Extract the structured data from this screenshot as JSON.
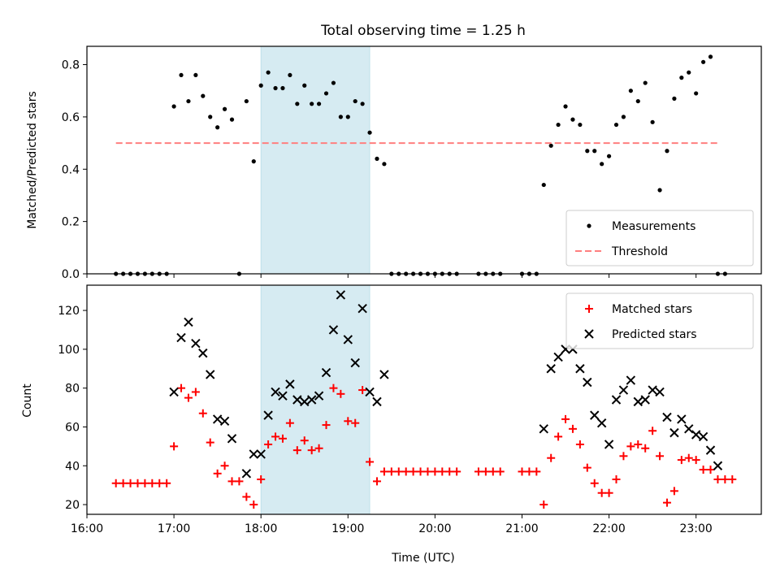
{
  "chart_data": [
    {
      "type": "scatter",
      "title": "Total observing time = 1.25 h",
      "xlabel": "",
      "ylabel": "Matched/Predicted stars",
      "xlim": [
        "16:00",
        "23:45"
      ],
      "ylim": [
        0,
        0.87
      ],
      "yticks": [
        0.0,
        0.2,
        0.4,
        0.6,
        0.8
      ],
      "ytick_labels": [
        "0.0",
        "0.2",
        "0.4",
        "0.6",
        "0.8"
      ],
      "shaded_span": {
        "x0": "18:00",
        "x1": "19:15",
        "color": "#add8e6"
      },
      "legend_position": "lower-right",
      "series": [
        {
          "name": "Measurements",
          "marker": "dot",
          "color": "#000000",
          "x": [
            "16:20",
            "16:25",
            "16:30",
            "16:35",
            "16:40",
            "16:45",
            "16:50",
            "16:55",
            "17:00",
            "17:05",
            "17:10",
            "17:15",
            "17:20",
            "17:25",
            "17:30",
            "17:35",
            "17:40",
            "17:45",
            "17:50",
            "17:55",
            "18:00",
            "18:05",
            "18:10",
            "18:15",
            "18:20",
            "18:25",
            "18:30",
            "18:35",
            "18:40",
            "18:45",
            "18:50",
            "18:55",
            "19:00",
            "19:05",
            "19:10",
            "19:15",
            "19:20",
            "19:25",
            "19:30",
            "19:35",
            "19:40",
            "19:45",
            "19:50",
            "19:55",
            "20:00",
            "20:05",
            "20:10",
            "20:15",
            "20:30",
            "20:35",
            "20:40",
            "20:45",
            "21:00",
            "21:05",
            "21:10",
            "21:15",
            "21:20",
            "21:25",
            "21:30",
            "21:35",
            "21:40",
            "21:45",
            "21:50",
            "21:55",
            "22:00",
            "22:05",
            "22:10",
            "22:15",
            "22:20",
            "22:25",
            "22:30",
            "22:35",
            "22:40",
            "22:45",
            "22:50",
            "22:55",
            "23:00",
            "23:05",
            "23:10",
            "23:15",
            "23:20"
          ],
          "y": [
            0,
            0,
            0,
            0,
            0,
            0,
            0,
            0,
            0.64,
            0.76,
            0.66,
            0.76,
            0.68,
            0.6,
            0.56,
            0.63,
            0.59,
            0,
            0.66,
            0.43,
            0.72,
            0.77,
            0.71,
            0.71,
            0.76,
            0.65,
            0.72,
            0.65,
            0.65,
            0.69,
            0.73,
            0.6,
            0.6,
            0.66,
            0.65,
            0.54,
            0.44,
            0.42,
            0,
            0,
            0,
            0,
            0,
            0,
            0,
            0,
            0,
            0,
            0,
            0,
            0,
            0,
            0,
            0,
            0,
            0.34,
            0.49,
            0.57,
            0.64,
            0.59,
            0.57,
            0.47,
            0.47,
            0.42,
            0.45,
            0.57,
            0.6,
            0.7,
            0.66,
            0.73,
            0.58,
            0.32,
            0.47,
            0.67,
            0.75,
            0.77,
            0.69,
            0.81,
            0.83,
            0,
            0
          ]
        },
        {
          "name": "Threshold",
          "style": "dashed",
          "color": "#ff7f7f",
          "x": [
            "16:20",
            "23:15"
          ],
          "y": [
            0.5,
            0.5
          ]
        }
      ]
    },
    {
      "type": "scatter",
      "title": "",
      "xlabel": "Time (UTC)",
      "ylabel": "Count",
      "xlim": [
        "16:00",
        "23:45"
      ],
      "ylim": [
        15,
        133
      ],
      "yticks": [
        20,
        40,
        60,
        80,
        100,
        120
      ],
      "ytick_labels": [
        "20",
        "40",
        "60",
        "80",
        "100",
        "120"
      ],
      "xticks": [
        "16:00",
        "17:00",
        "18:00",
        "19:00",
        "20:00",
        "21:00",
        "22:00",
        "23:00"
      ],
      "xtick_labels": [
        "16:00",
        "17:00",
        "18:00",
        "19:00",
        "20:00",
        "21:00",
        "22:00",
        "23:00"
      ],
      "shaded_span": {
        "x0": "18:00",
        "x1": "19:15",
        "color": "#add8e6"
      },
      "legend_position": "upper-right",
      "series": [
        {
          "name": "Matched stars",
          "marker": "plus",
          "color": "#ff0000",
          "x": [
            "16:20",
            "16:25",
            "16:30",
            "16:35",
            "16:40",
            "16:45",
            "16:50",
            "16:55",
            "17:00",
            "17:05",
            "17:10",
            "17:15",
            "17:20",
            "17:25",
            "17:30",
            "17:35",
            "17:40",
            "17:45",
            "17:50",
            "17:55",
            "18:00",
            "18:05",
            "18:10",
            "18:15",
            "18:20",
            "18:25",
            "18:30",
            "18:35",
            "18:40",
            "18:45",
            "18:50",
            "18:55",
            "19:00",
            "19:05",
            "19:10",
            "19:15",
            "19:20",
            "19:25",
            "19:30",
            "19:35",
            "19:40",
            "19:45",
            "19:50",
            "19:55",
            "20:00",
            "20:05",
            "20:10",
            "20:15",
            "20:30",
            "20:35",
            "20:40",
            "20:45",
            "21:00",
            "21:05",
            "21:10",
            "21:15",
            "21:20",
            "21:25",
            "21:30",
            "21:35",
            "21:40",
            "21:45",
            "21:50",
            "21:55",
            "22:00",
            "22:05",
            "22:10",
            "22:15",
            "22:20",
            "22:25",
            "22:30",
            "22:35",
            "22:40",
            "22:45",
            "22:50",
            "22:55",
            "23:00",
            "23:05",
            "23:10",
            "23:15",
            "23:20",
            "23:25"
          ],
          "y": [
            31,
            31,
            31,
            31,
            31,
            31,
            31,
            31,
            50,
            80,
            75,
            78,
            67,
            52,
            36,
            40,
            32,
            32,
            24,
            20,
            33,
            51,
            55,
            54,
            62,
            48,
            53,
            48,
            49,
            61,
            80,
            77,
            63,
            62,
            79,
            42,
            32,
            37,
            37,
            37,
            37,
            37,
            37,
            37,
            37,
            37,
            37,
            37,
            37,
            37,
            37,
            37,
            37,
            37,
            37,
            20,
            44,
            55,
            64,
            59,
            51,
            39,
            31,
            26,
            26,
            33,
            45,
            50,
            51,
            49,
            58,
            45,
            21,
            27,
            43,
            44,
            43,
            38,
            38,
            33,
            33,
            33
          ]
        },
        {
          "name": "Predicted stars",
          "marker": "x",
          "color": "#000000",
          "x": [
            "17:00",
            "17:05",
            "17:10",
            "17:15",
            "17:20",
            "17:25",
            "17:30",
            "17:35",
            "17:40",
            "17:50",
            "17:55",
            "18:00",
            "18:05",
            "18:10",
            "18:15",
            "18:20",
            "18:25",
            "18:30",
            "18:35",
            "18:40",
            "18:45",
            "18:50",
            "18:55",
            "19:00",
            "19:05",
            "19:10",
            "19:15",
            "19:20",
            "19:25",
            "21:15",
            "21:20",
            "21:25",
            "21:30",
            "21:35",
            "21:40",
            "21:45",
            "21:50",
            "21:55",
            "22:00",
            "22:05",
            "22:10",
            "22:15",
            "22:20",
            "22:25",
            "22:30",
            "22:35",
            "22:40",
            "22:45",
            "22:50",
            "22:55",
            "23:00",
            "23:05",
            "23:10",
            "23:15"
          ],
          "y": [
            78,
            106,
            114,
            103,
            98,
            87,
            64,
            63,
            54,
            36,
            46,
            46,
            66,
            78,
            76,
            82,
            74,
            73,
            74,
            76,
            88,
            110,
            128,
            105,
            93,
            121,
            78,
            73,
            87,
            59,
            90,
            96,
            100,
            100,
            90,
            83,
            66,
            62,
            51,
            74,
            79,
            84,
            73,
            74,
            79,
            78,
            65,
            57,
            64,
            59,
            56,
            55,
            48,
            40
          ]
        }
      ]
    }
  ]
}
